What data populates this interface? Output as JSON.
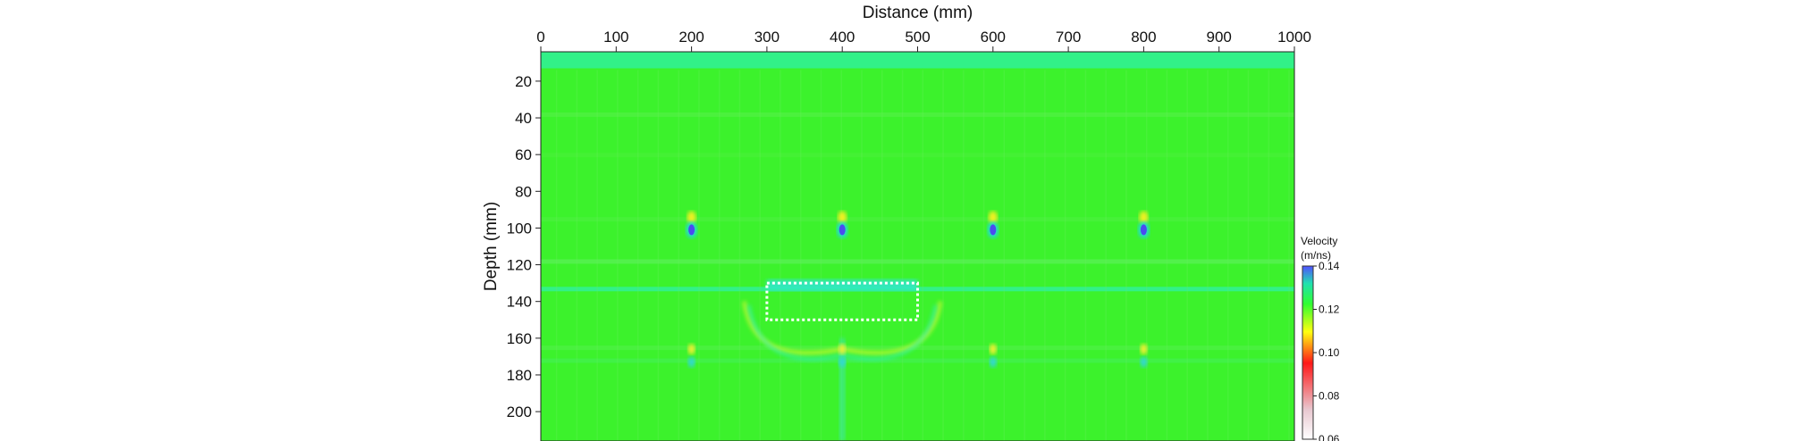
{
  "chart_data": {
    "type": "heatmap",
    "title": "",
    "xlabel": "Distance (mm)",
    "ylabel": "Depth (mm)",
    "xlim": [
      0,
      1000
    ],
    "ylim": [
      216,
      4
    ],
    "x_ticks": [
      0,
      100,
      200,
      300,
      400,
      500,
      600,
      700,
      800,
      900,
      1000
    ],
    "y_ticks": [
      20,
      40,
      60,
      80,
      100,
      120,
      140,
      160,
      180,
      200
    ],
    "x_axis_position": "top",
    "grid": false,
    "background_value": 0.12,
    "colorbar": {
      "title_line1": "Velocity",
      "title_line2": "(m/ns)",
      "min": 0.06,
      "max": 0.14,
      "ticks": [
        "0.14",
        "0.12",
        "0.10",
        "0.08",
        "0.06"
      ],
      "colors": [
        "#ffffff",
        "#e0c0c8",
        "#ff2020",
        "#ffff00",
        "#30ff30",
        "#2080ff",
        "#5050ff"
      ]
    },
    "anomalies": [
      {
        "x": 200,
        "depth": 100,
        "min_velocity": 0.14
      },
      {
        "x": 400,
        "depth": 100,
        "min_velocity": 0.14
      },
      {
        "x": 600,
        "depth": 100,
        "min_velocity": 0.14
      },
      {
        "x": 800,
        "depth": 100,
        "min_velocity": 0.14
      }
    ],
    "highlight_box": {
      "x": [
        300,
        500
      ],
      "depth": [
        130,
        150
      ],
      "style": "dotted white"
    }
  }
}
